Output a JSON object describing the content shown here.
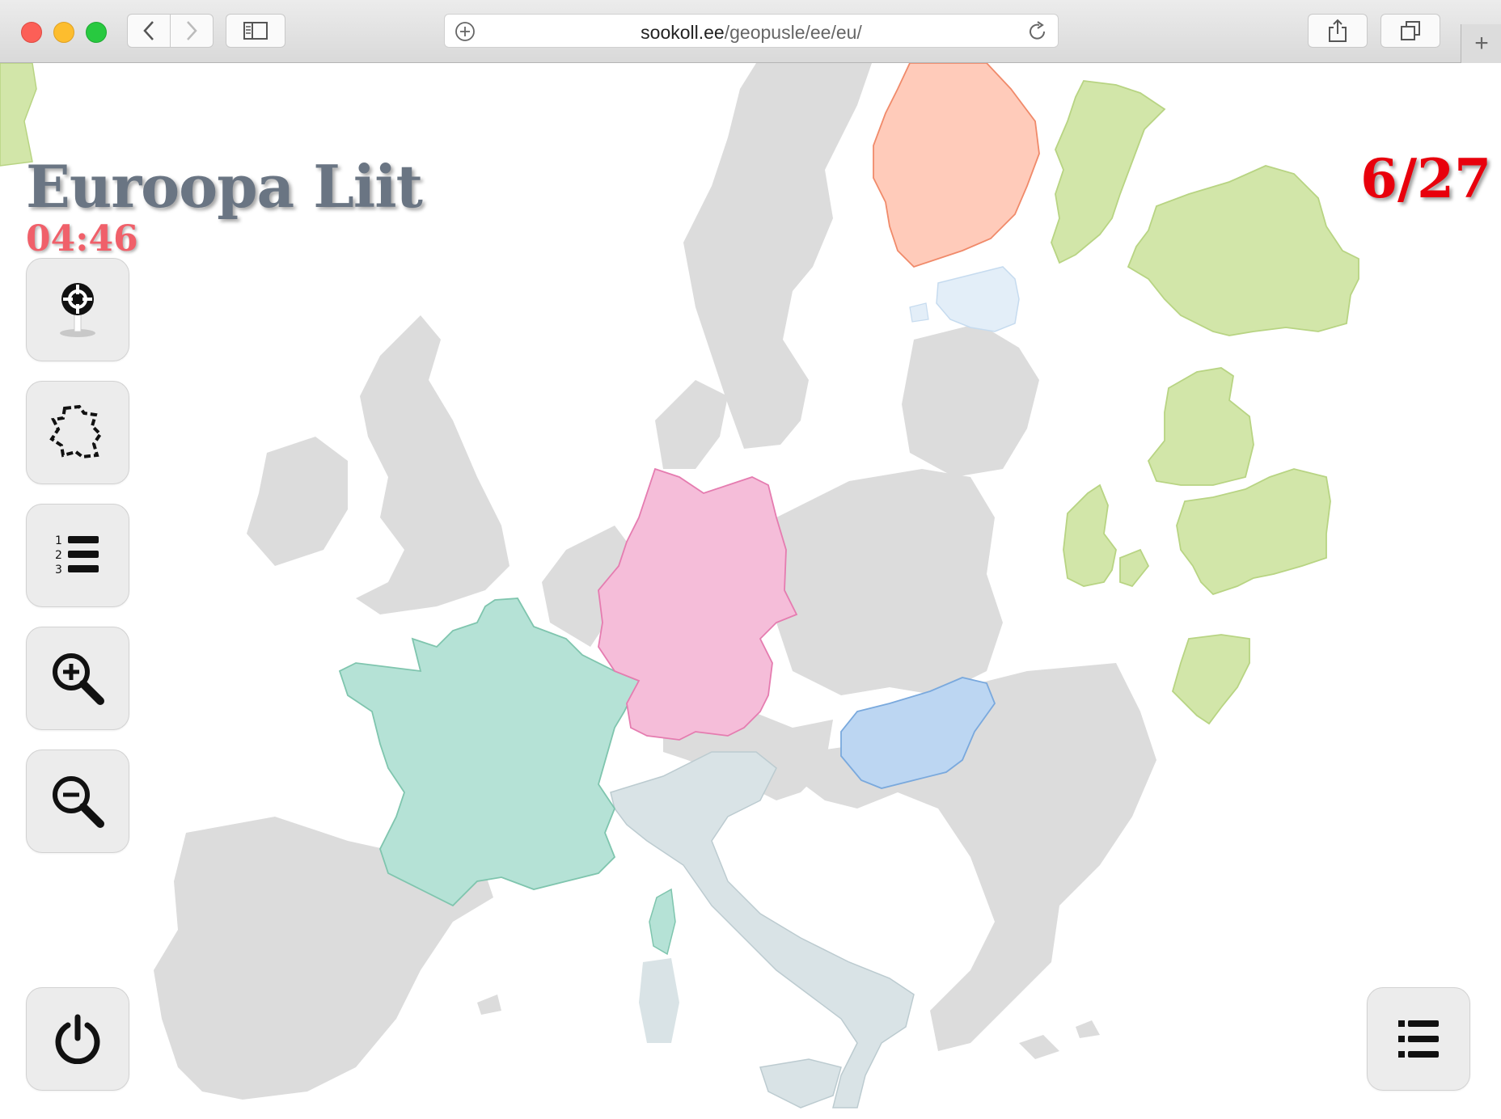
{
  "browser": {
    "url_domain": "sookoll.ee",
    "url_path": "/geopusle/ee/eu/"
  },
  "game": {
    "title": "Euroopa Liit",
    "timer": "04:46",
    "score": "6/27"
  },
  "tools": [
    {
      "name": "locate-country",
      "icon": "target-pin-icon"
    },
    {
      "name": "shuffle-pieces",
      "icon": "puzzle-outline-icon"
    },
    {
      "name": "ranking-list",
      "icon": "numbered-list-icon"
    },
    {
      "name": "zoom-in",
      "icon": "zoom-in-icon"
    },
    {
      "name": "zoom-out",
      "icon": "zoom-out-icon"
    },
    {
      "name": "quit",
      "icon": "power-icon"
    },
    {
      "name": "menu",
      "icon": "list-icon"
    }
  ],
  "colors": {
    "land_gray": "#dcdcdc",
    "france": "#b5e2d6",
    "germany": "#f5bdd9",
    "hungary": "#bcd6f2",
    "italy": "#d9e3e6",
    "finland": "#ffcbba",
    "estonia": "#e3eef8",
    "unplaced_piece": "#d2e6a9",
    "title": "#6a7583",
    "timer": "#f0606a",
    "score": "#e8000c"
  },
  "placed_countries": [
    "France",
    "Germany",
    "Hungary",
    "Italy",
    "Finland",
    "Estonia"
  ],
  "unplaced_pieces": [
    "Portugal",
    "Romania",
    "Ireland",
    "Bulgaria",
    "Denmark",
    "Netherlands"
  ]
}
